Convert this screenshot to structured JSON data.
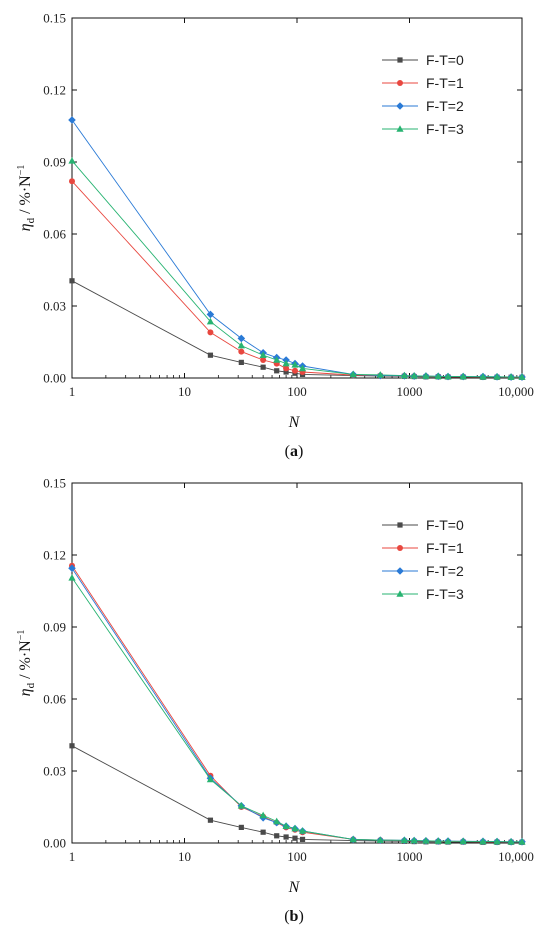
{
  "chart_data": [
    {
      "type": "line",
      "panel_label": "(a)",
      "panel_letter": "a",
      "xlabel": "N",
      "ylabel_main": "η",
      "ylabel_sub": "d",
      "ylabel_unit": " / %·N",
      "ylabel_sup": "−1",
      "xscale": "log",
      "xlim": [
        1,
        10000
      ],
      "ylim": [
        0,
        0.15
      ],
      "xticks": [
        1,
        10,
        100,
        1000,
        10000
      ],
      "xtick_labels": [
        "1",
        "10",
        "100",
        "1000",
        "10,000"
      ],
      "yticks": [
        0,
        0.03,
        0.06,
        0.09,
        0.12,
        0.15
      ],
      "ytick_labels": [
        "0.00",
        "0.03",
        "0.06",
        "0.09",
        "0.12",
        "0.15"
      ],
      "grid": false,
      "legend_position": "top-right",
      "x": [
        1,
        17,
        32,
        50,
        66,
        80,
        96,
        112,
        316,
        550,
        900,
        1100,
        1400,
        1800,
        2200,
        3000,
        4500,
        6000,
        8000,
        10000
      ],
      "series": [
        {
          "name": "F-T=0",
          "color": "#4a4a4a",
          "marker": "square",
          "values": [
            0.0405,
            0.0095,
            0.0065,
            0.0045,
            0.003,
            0.0025,
            0.002,
            0.0015,
            0.001,
            0.0008,
            0.0007,
            0.0006,
            0.0005,
            0.0005,
            0.0004,
            0.0004,
            0.0003,
            0.0003,
            0.0003,
            0.0003
          ]
        },
        {
          "name": "F-T=1",
          "color": "#e8473f",
          "marker": "circle",
          "values": [
            0.082,
            0.019,
            0.011,
            0.0075,
            0.006,
            0.004,
            0.003,
            0.0025,
            0.0012,
            0.001,
            0.0009,
            0.0008,
            0.0007,
            0.0006,
            0.0005,
            0.0005,
            0.0004,
            0.0004,
            0.0003,
            0.0003
          ]
        },
        {
          "name": "F-T=2",
          "color": "#2a7ad6",
          "marker": "diamond",
          "values": [
            0.1075,
            0.0265,
            0.0165,
            0.0105,
            0.0085,
            0.0075,
            0.006,
            0.005,
            0.0015,
            0.001,
            0.0009,
            0.0008,
            0.0008,
            0.0007,
            0.0006,
            0.0006,
            0.0006,
            0.0005,
            0.0004,
            0.0004
          ]
        },
        {
          "name": "F-T=3",
          "color": "#27b371",
          "marker": "triangle",
          "values": [
            0.0905,
            0.0235,
            0.0135,
            0.0095,
            0.0075,
            0.006,
            0.0055,
            0.004,
            0.0015,
            0.0013,
            0.001,
            0.0009,
            0.0008,
            0.0007,
            0.0006,
            0.0006,
            0.0005,
            0.0005,
            0.0004,
            0.0004
          ]
        }
      ]
    },
    {
      "type": "line",
      "panel_label": "(b)",
      "panel_letter": "b",
      "xlabel": "N",
      "ylabel_main": "η",
      "ylabel_sub": "d",
      "ylabel_unit": " / %·N",
      "ylabel_sup": "−1",
      "xscale": "log",
      "xlim": [
        1,
        10000
      ],
      "ylim": [
        0,
        0.15
      ],
      "xticks": [
        1,
        10,
        100,
        1000,
        10000
      ],
      "xtick_labels": [
        "1",
        "10",
        "100",
        "1000",
        "10,000"
      ],
      "yticks": [
        0,
        0.03,
        0.06,
        0.09,
        0.12,
        0.15
      ],
      "ytick_labels": [
        "0.00",
        "0.03",
        "0.06",
        "0.09",
        "0.12",
        "0.15"
      ],
      "grid": false,
      "legend_position": "top-right",
      "x": [
        1,
        17,
        32,
        50,
        66,
        80,
        96,
        112,
        316,
        550,
        900,
        1100,
        1400,
        1800,
        2200,
        3000,
        4500,
        6000,
        8000,
        10000
      ],
      "series": [
        {
          "name": "F-T=0",
          "color": "#4a4a4a",
          "marker": "square",
          "values": [
            0.0405,
            0.0095,
            0.0065,
            0.0045,
            0.003,
            0.0025,
            0.002,
            0.0015,
            0.001,
            0.0008,
            0.0007,
            0.0006,
            0.0005,
            0.0005,
            0.0004,
            0.0004,
            0.0003,
            0.0003,
            0.0003,
            0.0003
          ]
        },
        {
          "name": "F-T=1",
          "color": "#e8473f",
          "marker": "circle",
          "values": [
            0.1155,
            0.028,
            0.015,
            0.011,
            0.0085,
            0.0065,
            0.0055,
            0.0045,
            0.0015,
            0.0012,
            0.001,
            0.0009,
            0.0008,
            0.0007,
            0.0006,
            0.0006,
            0.0005,
            0.0005,
            0.0004,
            0.0004
          ]
        },
        {
          "name": "F-T=2",
          "color": "#2a7ad6",
          "marker": "diamond",
          "values": [
            0.1145,
            0.027,
            0.0155,
            0.0105,
            0.0085,
            0.007,
            0.006,
            0.005,
            0.0015,
            0.0012,
            0.0011,
            0.001,
            0.0009,
            0.0008,
            0.0008,
            0.0007,
            0.0007,
            0.0006,
            0.0005,
            0.0005
          ]
        },
        {
          "name": "F-T=3",
          "color": "#27b371",
          "marker": "triangle",
          "values": [
            0.1105,
            0.0265,
            0.0155,
            0.0115,
            0.009,
            0.007,
            0.006,
            0.005,
            0.0015,
            0.0012,
            0.0011,
            0.001,
            0.0009,
            0.0008,
            0.0007,
            0.0007,
            0.0006,
            0.0006,
            0.0005,
            0.0005
          ]
        }
      ]
    }
  ]
}
